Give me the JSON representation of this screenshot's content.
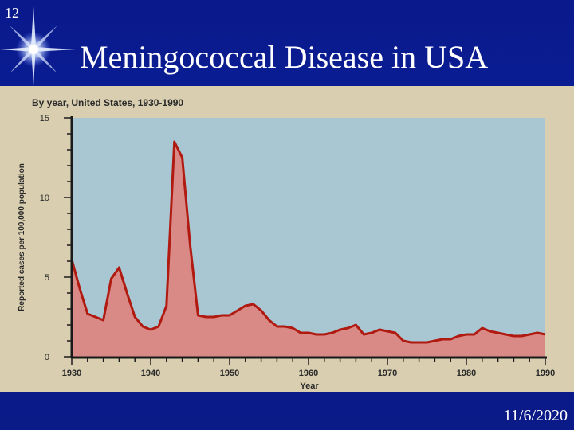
{
  "slide": {
    "number": "12",
    "title": "Meningococcal  Disease in USA",
    "date": "11/6/2020",
    "icon": "star-burst-icon",
    "colors": {
      "background": "#0b1f9a",
      "text": "#ffffff"
    }
  },
  "chart_data": {
    "type": "area",
    "title": "By year, United States, 1930-1990",
    "xlabel": "Year",
    "ylabel": "Reported cases per 100,000 population",
    "xlim": [
      1930,
      1990
    ],
    "ylim": [
      0,
      15
    ],
    "x_ticks": [
      "1930",
      "1940",
      "1950",
      "1960",
      "1970",
      "1980",
      "1990"
    ],
    "y_ticks": [
      "0",
      "5",
      "10",
      "15"
    ],
    "grid": false,
    "colors": {
      "plot_background": "#a9c7d2",
      "fill": "#d98a86",
      "line": "#b01a10"
    },
    "series": [
      {
        "x": [
          1930,
          1931,
          1932,
          1933,
          1934,
          1935,
          1936,
          1937,
          1938,
          1939,
          1940,
          1941,
          1942,
          1943,
          1944,
          1945,
          1946,
          1947,
          1948,
          1949,
          1950,
          1951,
          1952,
          1953,
          1954,
          1955,
          1956,
          1957,
          1958,
          1959,
          1960,
          1961,
          1962,
          1963,
          1964,
          1965,
          1966,
          1967,
          1968,
          1969,
          1970,
          1971,
          1972,
          1973,
          1974,
          1975,
          1976,
          1977,
          1978,
          1979,
          1980,
          1981,
          1982,
          1983,
          1984,
          1985,
          1986,
          1987,
          1988,
          1989,
          1990
        ],
        "y": [
          6.1,
          4.3,
          2.7,
          2.5,
          2.3,
          4.9,
          5.6,
          4.0,
          2.5,
          1.9,
          1.7,
          1.9,
          3.2,
          13.5,
          12.5,
          7.0,
          2.6,
          2.5,
          2.5,
          2.6,
          2.6,
          2.9,
          3.2,
          3.3,
          2.9,
          2.3,
          1.9,
          1.9,
          1.8,
          1.5,
          1.5,
          1.4,
          1.4,
          1.5,
          1.7,
          1.8,
          2.0,
          1.4,
          1.5,
          1.7,
          1.6,
          1.5,
          1.0,
          0.9,
          0.9,
          0.9,
          1.0,
          1.1,
          1.1,
          1.3,
          1.4,
          1.4,
          1.8,
          1.6,
          1.5,
          1.4,
          1.3,
          1.3,
          1.4,
          1.5,
          1.4
        ]
      }
    ]
  }
}
